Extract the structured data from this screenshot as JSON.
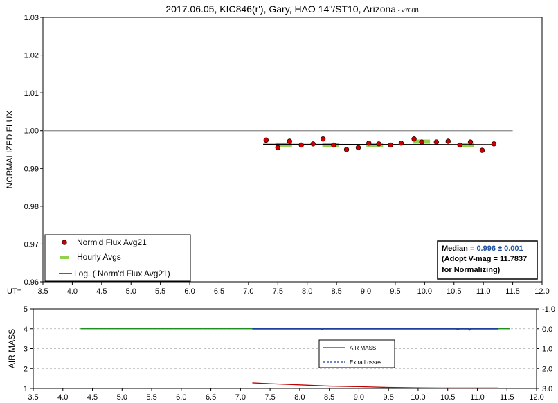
{
  "chart_data": [
    {
      "type": "scatter",
      "title": "2017.06.05, KIC846(r'), Gary, HAO 14\"/ST10, Arizona",
      "title_suffix": " - v7608",
      "xlabel": "UT=",
      "ylabel": "NORMALIZED FLUX",
      "xlim": [
        3.5,
        12.0
      ],
      "ylim": [
        0.96,
        1.03
      ],
      "x_ticks": [
        "3.5",
        "4.0",
        "4.5",
        "5.0",
        "5.5",
        "6.0",
        "6.5",
        "7.0",
        "7.5",
        "8.0",
        "8.5",
        "9.0",
        "9.5",
        "10.0",
        "10.5",
        "11.0",
        "11.5",
        "12.0"
      ],
      "y_ticks": [
        "0.96",
        "0.97",
        "0.98",
        "0.99",
        "1.00",
        "1.01",
        "1.02",
        "1.03"
      ],
      "reference_line": {
        "y": 1.0,
        "x_from": 3.5,
        "x_to": 11.5,
        "color": "#888888"
      },
      "series": [
        {
          "name": "Norm'd Flux Avg21",
          "style": "points",
          "color": "#cc0000",
          "points": [
            [
              7.3,
              0.9975
            ],
            [
              7.5,
              0.9955
            ],
            [
              7.7,
              0.9972
            ],
            [
              7.9,
              0.9962
            ],
            [
              8.1,
              0.9965
            ],
            [
              8.27,
              0.9978
            ],
            [
              8.45,
              0.9962
            ],
            [
              8.67,
              0.995
            ],
            [
              8.87,
              0.9955
            ],
            [
              9.05,
              0.9967
            ],
            [
              9.22,
              0.9965
            ],
            [
              9.42,
              0.9962
            ],
            [
              9.6,
              0.9967
            ],
            [
              9.82,
              0.9978
            ],
            [
              9.95,
              0.997
            ],
            [
              10.2,
              0.997
            ],
            [
              10.4,
              0.9972
            ],
            [
              10.6,
              0.9962
            ],
            [
              10.78,
              0.997
            ],
            [
              10.98,
              0.9948
            ],
            [
              11.18,
              0.9965
            ]
          ]
        },
        {
          "name": "Hourly Avgs",
          "style": "bars",
          "color": "#92d050",
          "points": [
            [
              7.6,
              0.9963
            ],
            [
              8.4,
              0.9961
            ],
            [
              9.15,
              0.9961
            ],
            [
              9.95,
              0.9971
            ],
            [
              10.7,
              0.9962
            ]
          ]
        },
        {
          "name": "Log. ( Norm'd Flux Avg21)",
          "style": "line",
          "color": "#000000",
          "points": [
            [
              7.25,
              0.9964
            ],
            [
              11.18,
              0.9963
            ]
          ]
        }
      ],
      "legend": {
        "placement": "bottom-left"
      },
      "stats_box": {
        "line1_label": "Median = ",
        "line1_value": "0.996 ± 0.001",
        "line1_value_color": "#1f4e9b",
        "line2": "(Adopt V-mag = 11.7837",
        "line3": " for Normalizing)"
      }
    },
    {
      "type": "line",
      "ylabel": "AIR MASS",
      "xlim": [
        3.5,
        12.0
      ],
      "ylim": [
        1,
        5
      ],
      "y2lim": [
        -1.0,
        3.0
      ],
      "x_ticks": [
        "3.5",
        "4.0",
        "4.5",
        "5.0",
        "5.5",
        "6.0",
        "6.5",
        "7.0",
        "7.5",
        "8.0",
        "8.5",
        "9.0",
        "9.5",
        "10.0",
        "10.5",
        "11.0",
        "11.5",
        "12.0"
      ],
      "y_ticks": [
        "1",
        "2",
        "3",
        "4",
        "5"
      ],
      "y2_ticks": [
        "-1.0",
        "0.0",
        "1.0",
        "2.0",
        "3.0"
      ],
      "reference_line": {
        "y": 4,
        "x_from": 4.3,
        "x_to": 11.55,
        "color": "#008000"
      },
      "series": [
        {
          "name": "AIR MASS",
          "color": "#c00000",
          "points": [
            [
              7.2,
              1.28
            ],
            [
              7.5,
              1.24
            ],
            [
              8.0,
              1.18
            ],
            [
              8.5,
              1.12
            ],
            [
              9.0,
              1.09
            ],
            [
              9.5,
              1.05
            ],
            [
              10.0,
              1.03
            ],
            [
              10.5,
              1.02
            ],
            [
              11.0,
              1.02
            ],
            [
              11.35,
              1.02
            ]
          ]
        },
        {
          "name": "Extra Losses",
          "color": "#1f3f9f",
          "axis": "right",
          "points": [
            [
              7.2,
              0.0
            ],
            [
              8.35,
              0.0
            ],
            [
              8.37,
              0.03
            ],
            [
              8.39,
              0.0
            ],
            [
              10.65,
              0.0
            ],
            [
              10.67,
              0.04
            ],
            [
              10.69,
              0.0
            ],
            [
              10.85,
              0.0
            ],
            [
              10.87,
              0.05
            ],
            [
              10.89,
              0.0
            ],
            [
              11.35,
              0.0
            ]
          ]
        }
      ],
      "legend": {
        "placement": "center"
      }
    }
  ]
}
